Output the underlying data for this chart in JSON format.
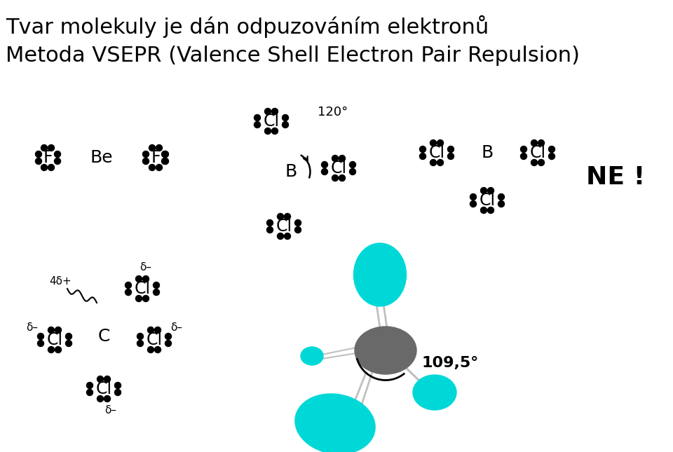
{
  "title1": "Tvar molekuly je dán odpuzováním elektronů",
  "title2": "Metoda VSEPR (Valence Shell Electron Pair Repulsion)",
  "bg_color": "#ffffff",
  "dot_color": "#000000",
  "cyan_color": "#00d8d8",
  "gray_color": "#696969",
  "ne_text": "NE !",
  "angle_120": "120°",
  "angle_109": "109,5°"
}
